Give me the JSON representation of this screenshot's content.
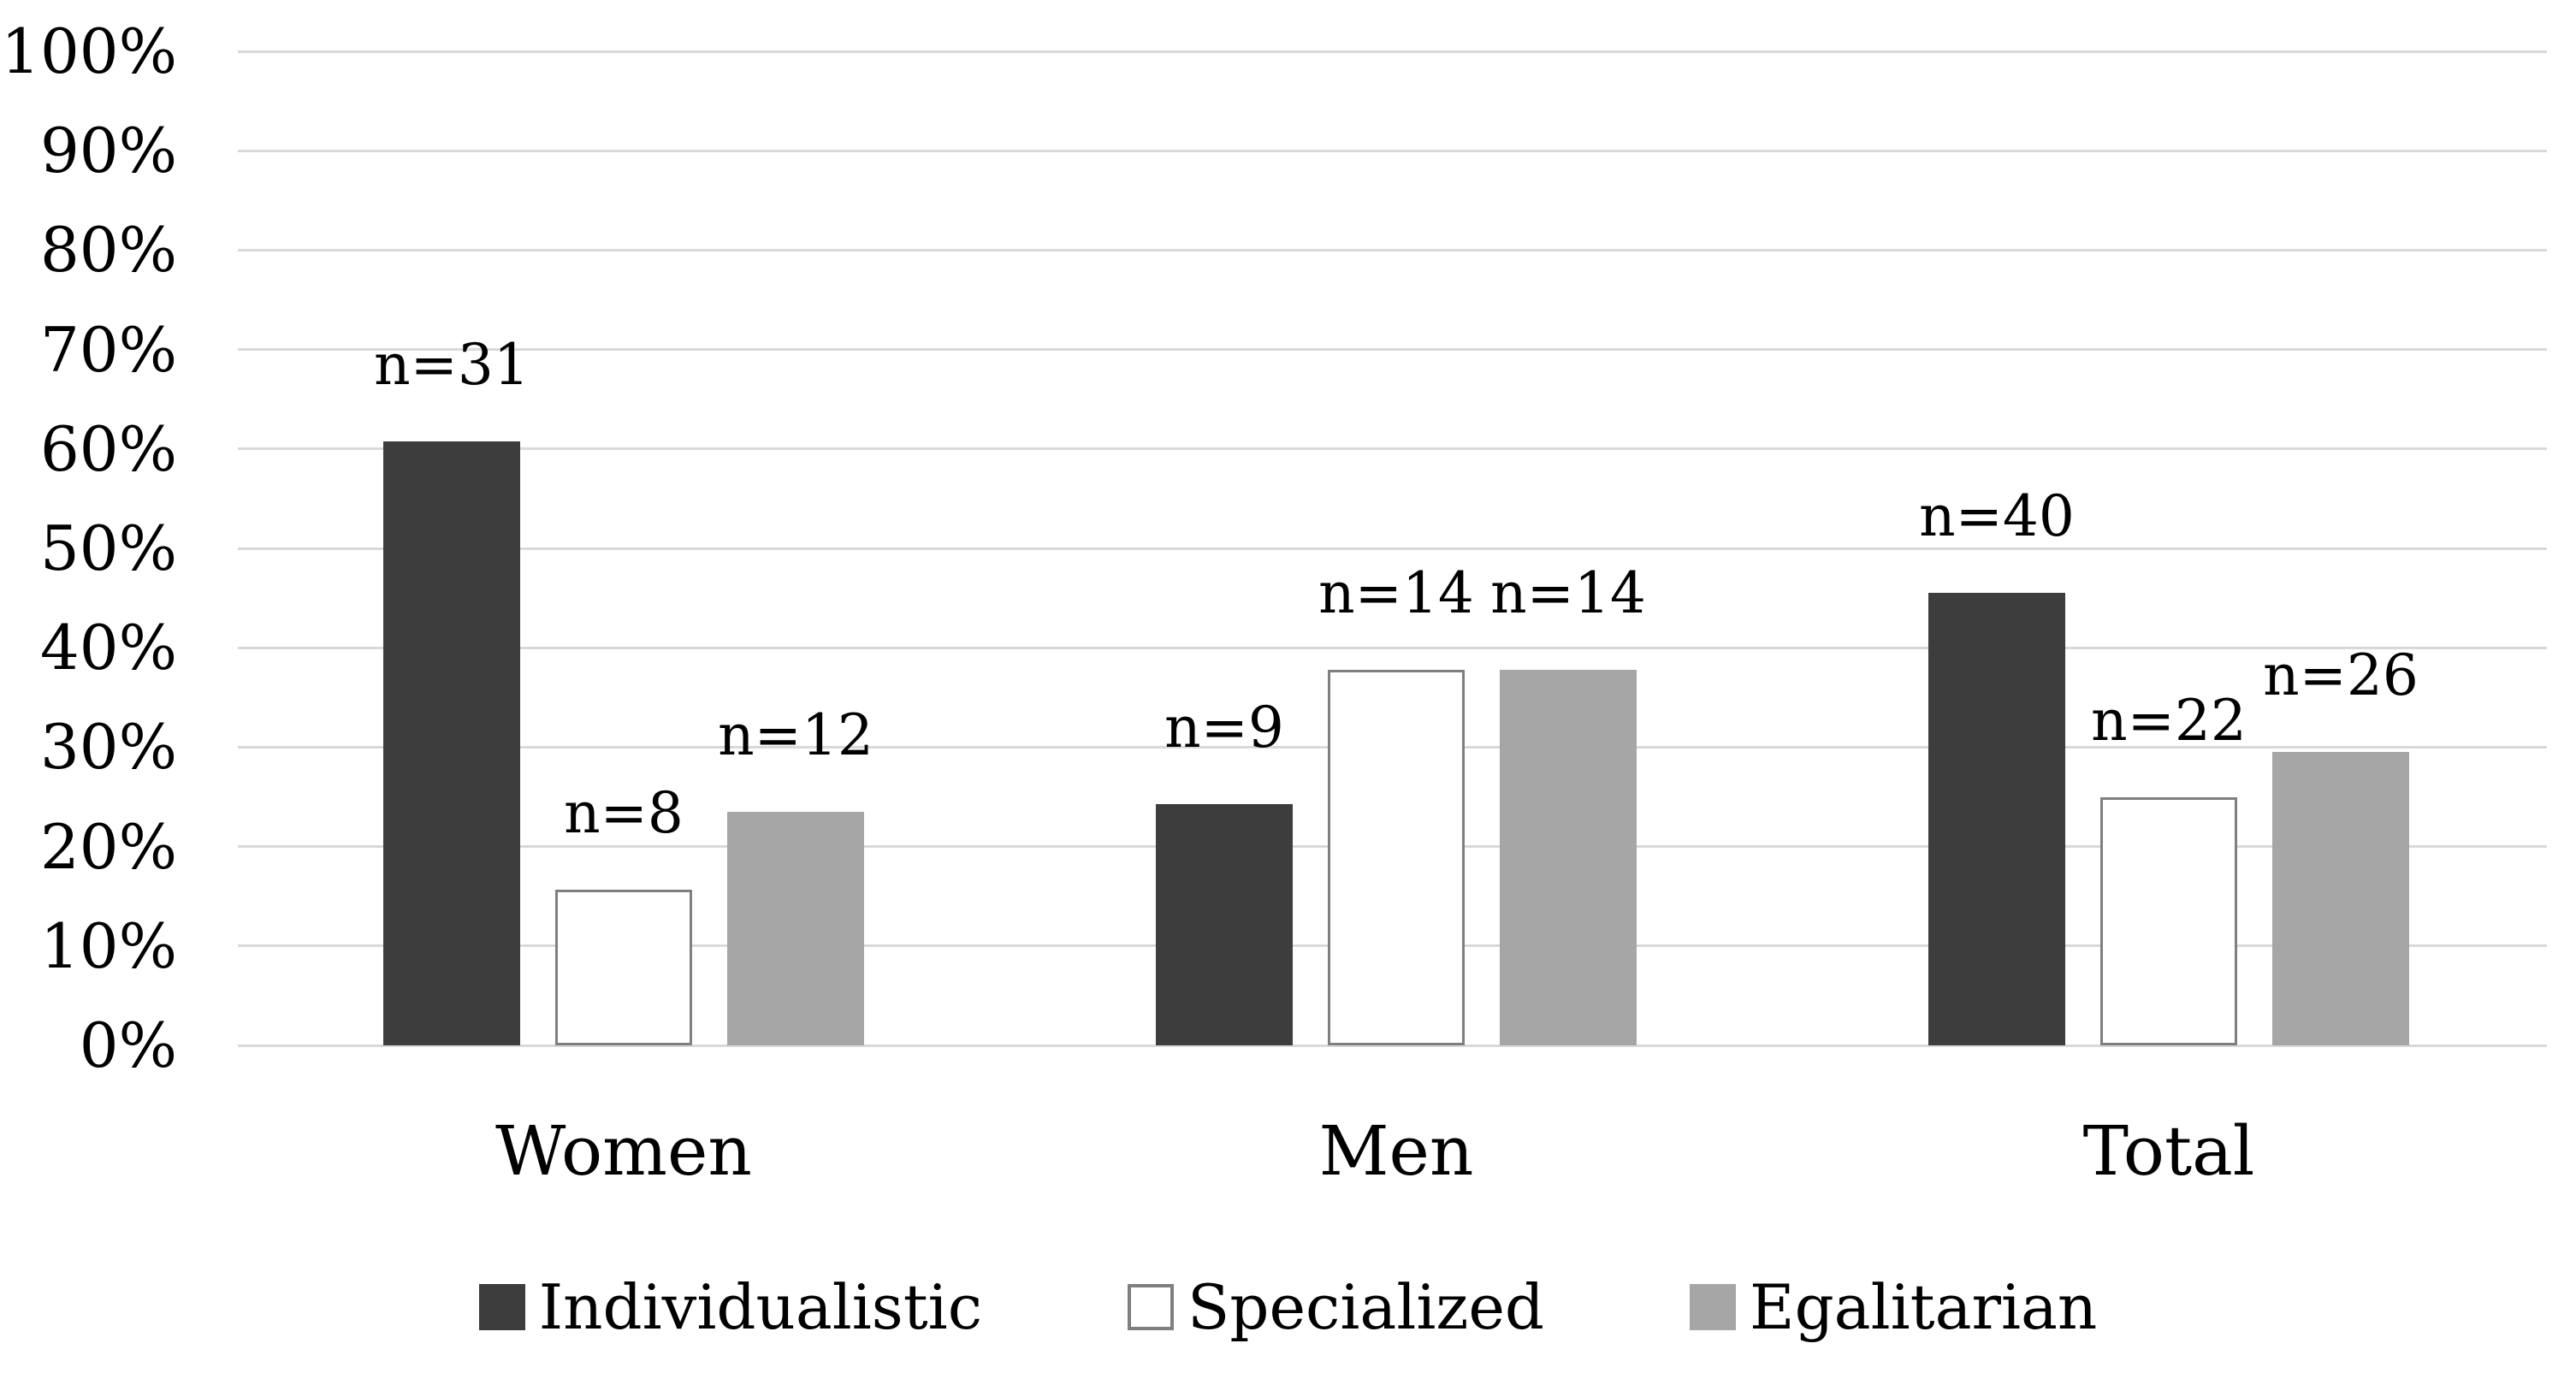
{
  "chart_data": {
    "type": "bar",
    "title": "",
    "xlabel": "",
    "ylabel": "",
    "categories": [
      "Women",
      "Men",
      "Total"
    ],
    "series": [
      {
        "name": "Individualistic",
        "color": "#3d3d3d",
        "border_color": "#3d3d3d",
        "values_pct": [
          60.8,
          24.3,
          45.5
        ],
        "counts": [
          31,
          9,
          40
        ],
        "count_labels": [
          "n=31",
          "n=9",
          "n=40"
        ]
      },
      {
        "name": "Specialized",
        "color": "#ffffff",
        "border_color": "#7f7f7f",
        "values_pct": [
          15.7,
          37.8,
          25.0
        ],
        "counts": [
          8,
          14,
          22
        ],
        "count_labels": [
          "n=8",
          "n=14",
          "n=22"
        ]
      },
      {
        "name": "Egalitarian",
        "color": "#a6a6a6",
        "border_color": "#a6a6a6",
        "values_pct": [
          23.5,
          37.8,
          29.5
        ],
        "counts": [
          12,
          14,
          26
        ],
        "count_labels": [
          "n=12",
          "n=14",
          "n=26"
        ]
      }
    ],
    "ylim": [
      0,
      100
    ],
    "ytick_labels": [
      "0%",
      "10%",
      "20%",
      "30%",
      "40%",
      "50%",
      "60%",
      "70%",
      "80%",
      "90%",
      "100%"
    ],
    "grid": "horizontal",
    "gridline_color": "#d9d9d9",
    "legend_position": "bottom",
    "background": "#ffffff"
  }
}
